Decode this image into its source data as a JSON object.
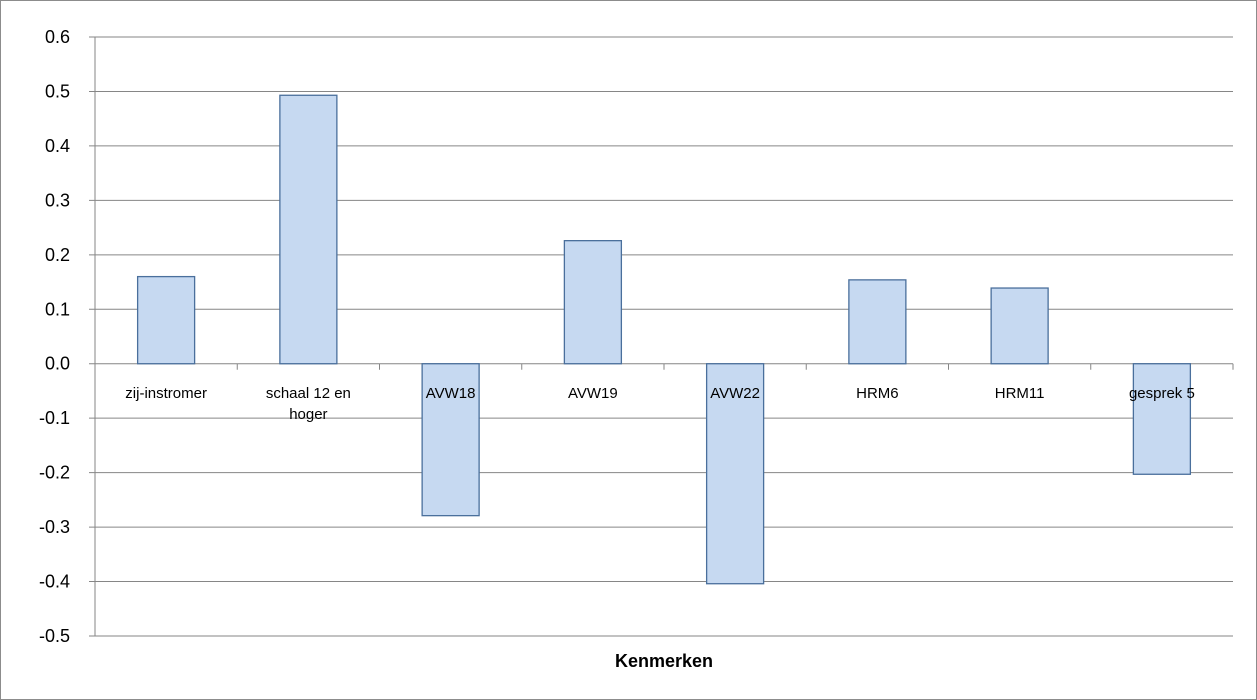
{
  "chart_data": {
    "type": "bar",
    "title": "",
    "xlabel": "Kenmerken",
    "ylabel": "",
    "categories": [
      [
        "zij-instromer"
      ],
      [
        "schaal 12 en",
        "hoger"
      ],
      [
        "AVW18"
      ],
      [
        "AVW19"
      ],
      [
        "AVW22"
      ],
      [
        "HRM6"
      ],
      [
        "HRM11"
      ],
      [
        "gesprek 5"
      ]
    ],
    "values": [
      0.16,
      0.493,
      -0.279,
      0.226,
      -0.404,
      0.154,
      0.139,
      -0.203
    ],
    "ylim": [
      -0.5,
      0.6
    ],
    "yticks": [
      0.6,
      0.5,
      0.4,
      0.3,
      0.2,
      0.1,
      0.0,
      -0.1,
      -0.2,
      -0.3,
      -0.4,
      -0.5
    ],
    "ytick_labels": [
      "0.6",
      "0.5",
      "0.4",
      "0.3",
      "0.2",
      "0.1",
      "0.0",
      "-0.1",
      "-0.2",
      "-0.3",
      "-0.4",
      "-0.5"
    ],
    "grid": true,
    "legend": "none",
    "colors": {
      "bar_fill": "#c6d9f1",
      "bar_stroke": "#4a6f9c",
      "grid": "#868686"
    }
  }
}
